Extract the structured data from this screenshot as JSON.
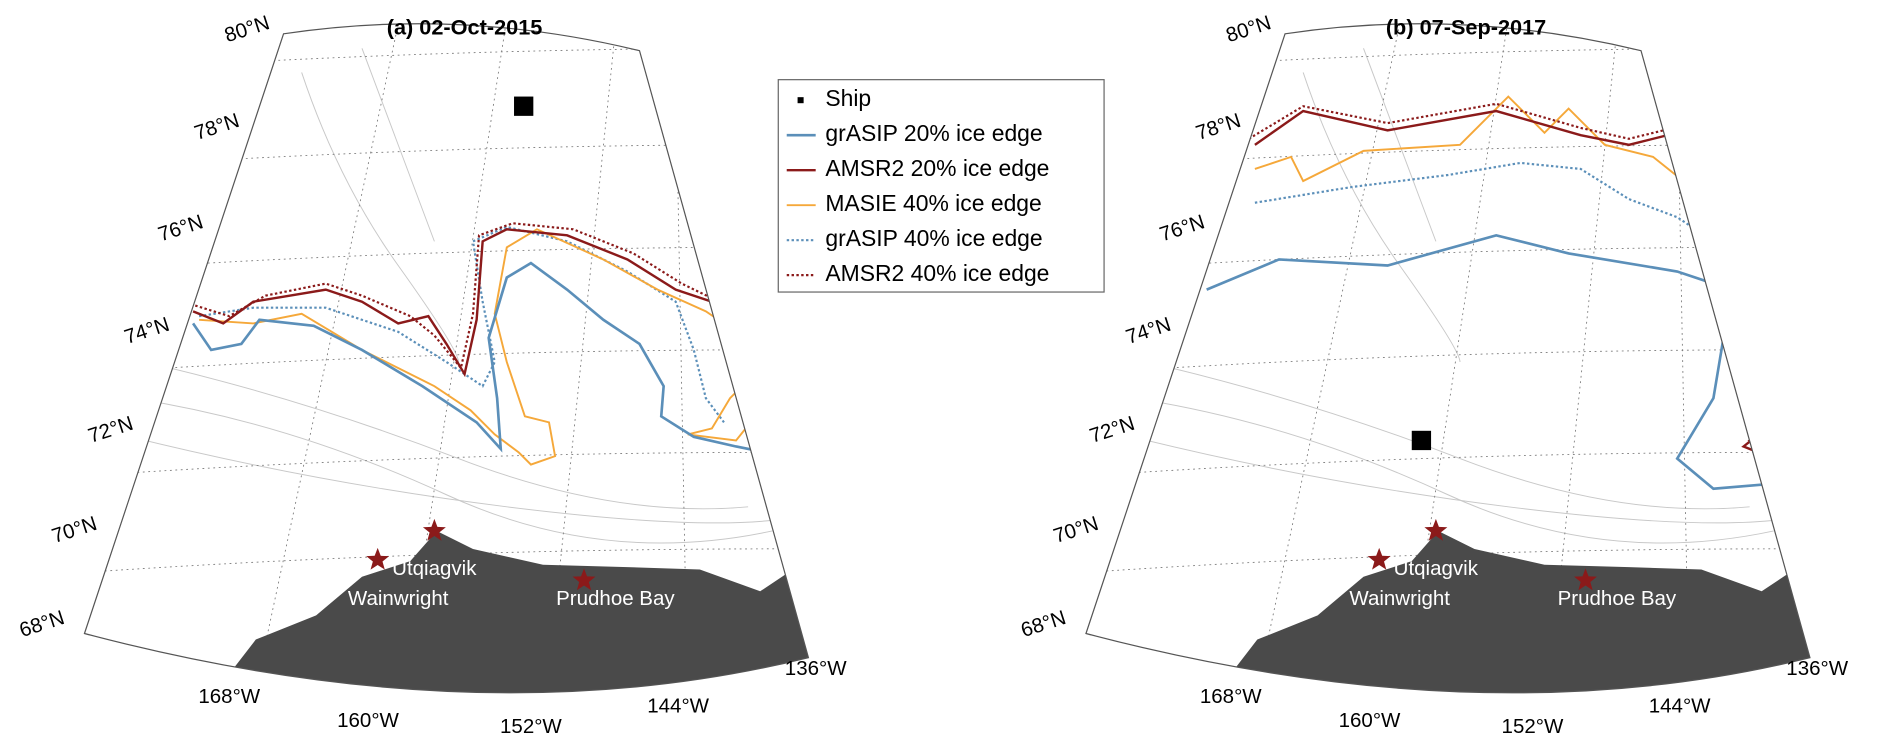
{
  "panels": [
    {
      "title": "(a) 02-Oct-2015",
      "lat_labels": [
        "80°N",
        "78°N",
        "76°N",
        "74°N",
        "72°N",
        "70°N",
        "68°N"
      ],
      "lon_labels": [
        "168°W",
        "160°W",
        "152°W",
        "144°W",
        "136°W"
      ],
      "places": [
        "Utqiagvik",
        "Wainwright",
        "Prudhoe Bay"
      ]
    },
    {
      "title": "(b) 07-Sep-2017",
      "lat_labels": [
        "80°N",
        "78°N",
        "76°N",
        "74°N",
        "72°N",
        "70°N",
        "68°N"
      ],
      "lon_labels": [
        "168°W",
        "160°W",
        "152°W",
        "144°W",
        "136°W"
      ],
      "places": [
        "Utqiagvik",
        "Wainwright",
        "Prudhoe Bay"
      ]
    }
  ],
  "legend": [
    {
      "label": "Ship",
      "color": "#000000"
    },
    {
      "label": "grASIP 20% ice edge",
      "color": "#5b8fb9"
    },
    {
      "label": "AMSR2 20% ice edge",
      "color": "#8b1a1a"
    },
    {
      "label": "MASIE 40% ice edge",
      "color": "#f5a83a"
    },
    {
      "label": "grASIP 40% ice edge",
      "color": "#5b8fb9"
    },
    {
      "label": "AMSR2 40% ice edge",
      "color": "#8b1a1a"
    }
  ]
}
